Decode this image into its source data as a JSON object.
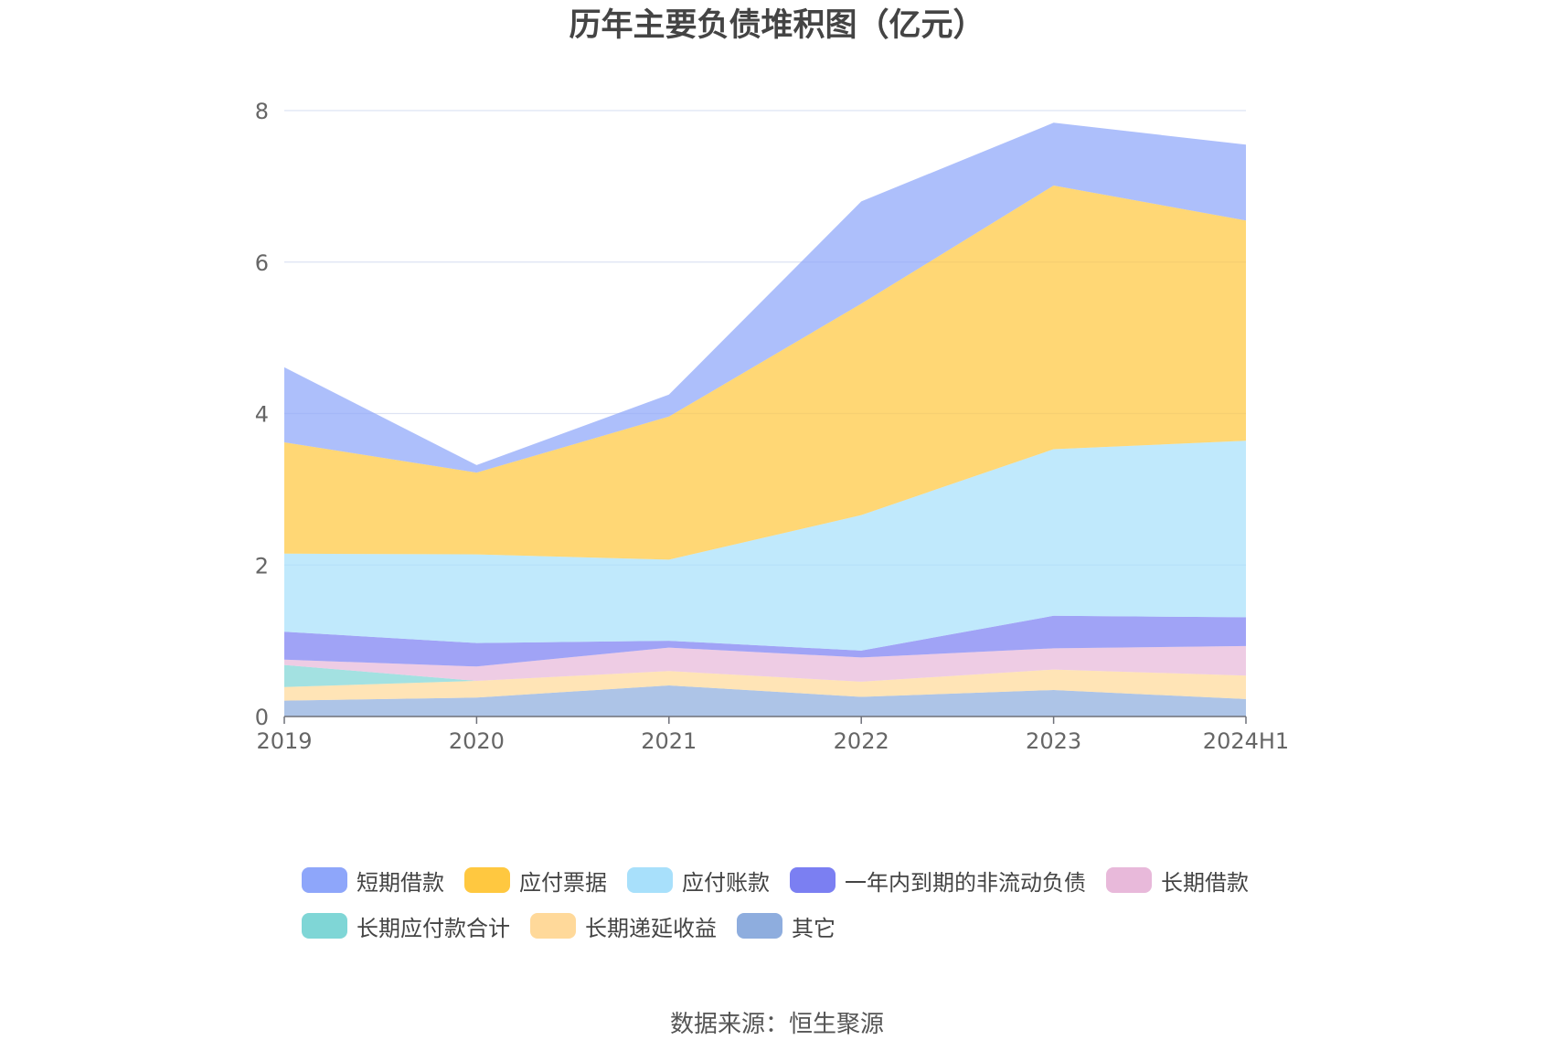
{
  "source_label": "数据来源：恒生聚源",
  "chart_data": {
    "type": "area",
    "stacked": true,
    "title": "历年主要负债堆积图（亿元）",
    "xlabel": "",
    "ylabel": "",
    "categories": [
      "2019",
      "2020",
      "2021",
      "2022",
      "2023",
      "2024H1"
    ],
    "ylim": [
      0,
      8
    ],
    "yticks": [
      0,
      2,
      4,
      6,
      8
    ],
    "grid": true,
    "legend_position": "bottom",
    "series": [
      {
        "name": "其它",
        "color": "#8eadde",
        "values": [
          0.21,
          0.25,
          0.41,
          0.26,
          0.35,
          0.23
        ]
      },
      {
        "name": "长期递延收益",
        "color": "#ffd99a",
        "values": [
          0.18,
          0.22,
          0.19,
          0.2,
          0.27,
          0.31
        ]
      },
      {
        "name": "长期应付款合计",
        "color": "#7fd6d6",
        "values": [
          0.29,
          0.0,
          0.0,
          0.0,
          0.0,
          0.0
        ]
      },
      {
        "name": "长期借款",
        "color": "#e8b9da",
        "values": [
          0.07,
          0.19,
          0.31,
          0.32,
          0.28,
          0.39
        ]
      },
      {
        "name": "一年内到期的非流动负债",
        "color": "#7b7ff2",
        "values": [
          0.37,
          0.31,
          0.09,
          0.09,
          0.43,
          0.38
        ]
      },
      {
        "name": "应付账款",
        "color": "#a8e0fb",
        "values": [
          1.03,
          1.17,
          1.07,
          1.79,
          2.2,
          2.33
        ]
      },
      {
        "name": "应付票据",
        "color": "#ffc840",
        "values": [
          1.47,
          1.08,
          1.89,
          2.79,
          3.48,
          2.91
        ]
      },
      {
        "name": "短期借款",
        "color": "#8ea6fa",
        "values": [
          0.99,
          0.1,
          0.29,
          1.35,
          0.83,
          1.0
        ]
      }
    ],
    "legend_order": [
      "短期借款",
      "应付票据",
      "应付账款",
      "一年内到期的非流动负债",
      "长期借款",
      "长期应付款合计",
      "长期递延收益",
      "其它"
    ]
  }
}
